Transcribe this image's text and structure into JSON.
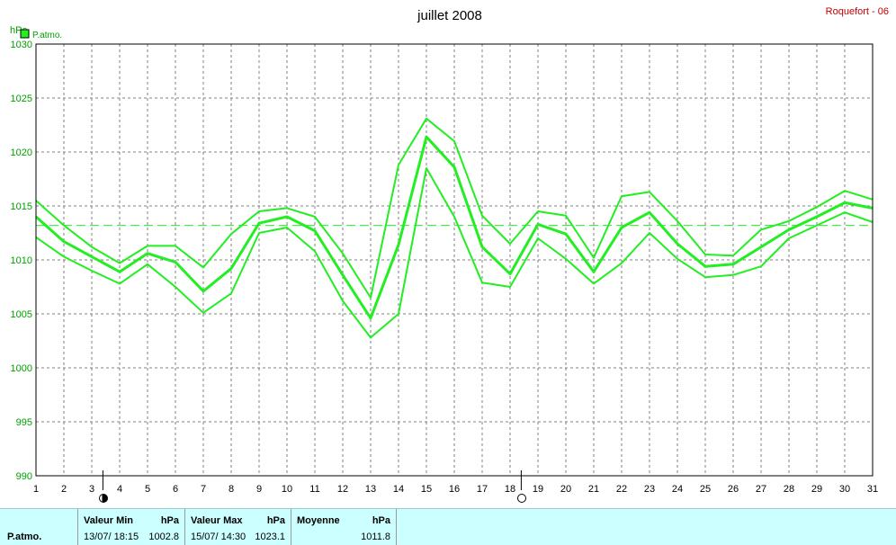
{
  "chart_data": {
    "type": "line",
    "title": "juillet 2008",
    "station": "Roquefort - 06",
    "ylabel": "hPa",
    "ylim": [
      990,
      1030
    ],
    "yticks": [
      990,
      995,
      1000,
      1005,
      1010,
      1015,
      1020,
      1025,
      1030
    ],
    "x": [
      1,
      2,
      3,
      4,
      5,
      6,
      7,
      8,
      9,
      10,
      11,
      12,
      13,
      14,
      15,
      16,
      17,
      18,
      19,
      20,
      21,
      22,
      23,
      24,
      25,
      26,
      27,
      28,
      29,
      30,
      31
    ],
    "legend": "P.atmo.",
    "grid": true,
    "series": [
      {
        "role": "max",
        "values": [
          1015.5,
          1013.2,
          1011.2,
          1009.7,
          1011.3,
          1011.3,
          1009.3,
          1012.4,
          1014.5,
          1014.8,
          1014.0,
          1010.6,
          1006.5,
          1018.8,
          1023.1,
          1021.0,
          1014.1,
          1011.5,
          1014.5,
          1014.1,
          1010.2,
          1015.9,
          1016.3,
          1013.6,
          1010.5,
          1010.4,
          1012.8,
          1013.6,
          1014.9,
          1016.4,
          1015.6
        ]
      },
      {
        "role": "mean",
        "values": [
          1014.0,
          1011.7,
          1010.3,
          1008.9,
          1010.6,
          1009.8,
          1007.1,
          1009.2,
          1013.4,
          1014.0,
          1012.7,
          1008.6,
          1004.6,
          1011.4,
          1021.4,
          1018.6,
          1011.2,
          1008.7,
          1013.3,
          1012.4,
          1008.9,
          1013.0,
          1014.4,
          1011.5,
          1009.4,
          1009.6,
          1011.2,
          1012.8,
          1014.0,
          1015.3,
          1014.8
        ]
      },
      {
        "role": "min",
        "values": [
          1012.1,
          1010.3,
          1009.0,
          1007.8,
          1009.6,
          1007.5,
          1005.1,
          1006.9,
          1012.5,
          1013.0,
          1010.8,
          1006.2,
          1002.8,
          1005.0,
          1018.5,
          1014.0,
          1007.9,
          1007.5,
          1012.0,
          1010.1,
          1007.8,
          1009.7,
          1012.5,
          1010.1,
          1008.4,
          1008.6,
          1009.4,
          1012.0,
          1013.2,
          1014.4,
          1013.5
        ]
      }
    ],
    "mean_line": 1013.2,
    "moon_phases": [
      {
        "day": 3,
        "phase": "new-moon"
      },
      {
        "day": 18,
        "phase": "full-moon"
      }
    ],
    "colors": {
      "series": "#22ee22",
      "axis": "#000000",
      "grid": "#808080",
      "title": "#000000",
      "station": "#c00000",
      "stats_bg": "#ccffff"
    }
  },
  "stats": {
    "row_label": "P.atmo.",
    "min": {
      "header": "Valeur Min",
      "unit": "hPa",
      "date": "13/07/  18:15",
      "value": "1002.8"
    },
    "max": {
      "header": "Valeur Max",
      "unit": "hPa",
      "date": "15/07/  14:30",
      "value": "1023.1"
    },
    "avg": {
      "header": "Moyenne",
      "unit": "hPa",
      "value": "1011.8"
    }
  }
}
